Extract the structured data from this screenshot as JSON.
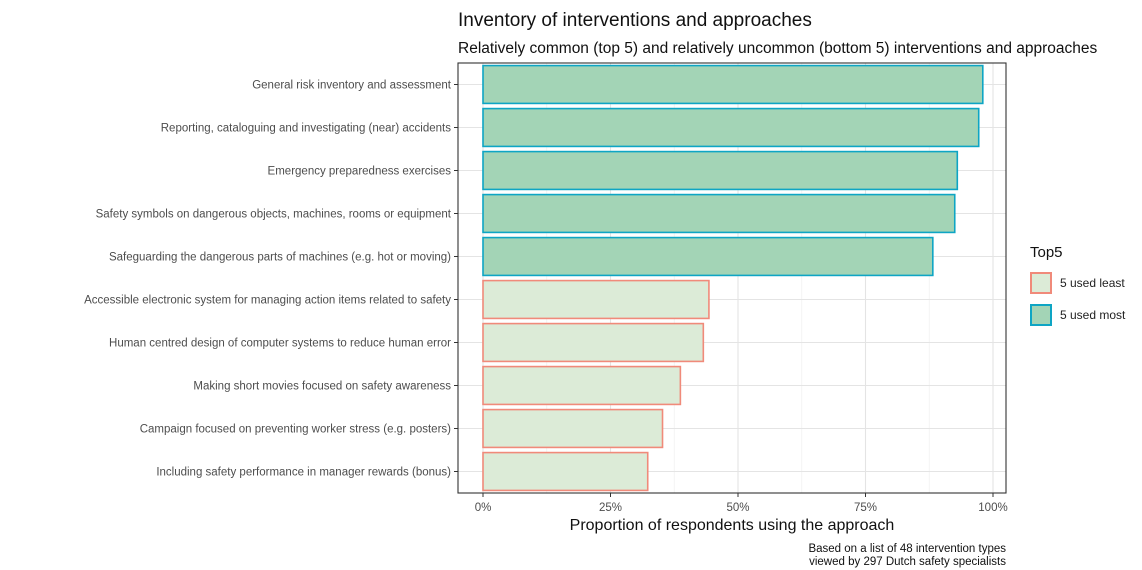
{
  "chart_data": {
    "type": "bar",
    "orientation": "horizontal",
    "title": "Inventory of interventions and approaches",
    "subtitle": "Relatively common (top 5) and relatively uncommon (bottom 5) interventions and approaches",
    "xlabel": "Proportion of respondents using the approach",
    "ylabel": "",
    "caption": [
      "Based on a list of 48 intervention types",
      "viewed by 297 Dutch safety specialists"
    ],
    "xlim": [
      0,
      1
    ],
    "x_ticks": [
      0,
      0.25,
      0.5,
      0.75,
      1.0
    ],
    "x_tick_labels": [
      "0%",
      "25%",
      "50%",
      "75%",
      "100%"
    ],
    "grid": true,
    "legend": {
      "title": "Top5",
      "position": "right",
      "entries": [
        {
          "label": "5 used least",
          "fill": "#dcebd7",
          "stroke": "#f08a7a"
        },
        {
          "label": "5 used most",
          "fill": "#a3d4b6",
          "stroke": "#0ea5c4"
        }
      ]
    },
    "categories": [
      "General risk inventory and assessment",
      "Reporting, cataloguing and investigating (near) accidents",
      "Emergency preparedness exercises",
      "Safety symbols on dangerous objects, machines, rooms or equipment",
      "Safeguarding the dangerous parts of machines (e.g. hot or moving)",
      "Accessible electronic system for managing action items related to safety",
      "Human centred design of computer systems to reduce human error",
      "Making short movies focused on safety awareness",
      "Campaign focused on preventing worker stress (e.g. posters)",
      "Including safety performance in manager rewards (bonus)"
    ],
    "values": [
      0.98,
      0.972,
      0.93,
      0.925,
      0.882,
      0.443,
      0.432,
      0.387,
      0.352,
      0.323
    ],
    "group": [
      "5 used most",
      "5 used most",
      "5 used most",
      "5 used most",
      "5 used most",
      "5 used least",
      "5 used least",
      "5 used least",
      "5 used least",
      "5 used least"
    ]
  }
}
